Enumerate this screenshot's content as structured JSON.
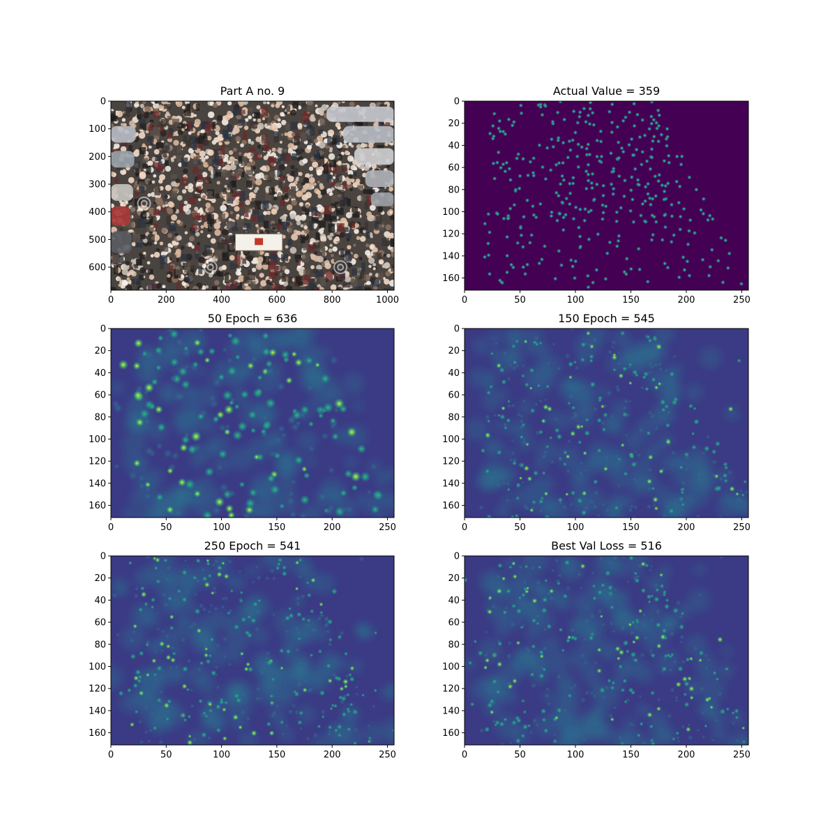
{
  "figure": {
    "layout": "3x2 grid of image panels"
  },
  "chart_data": [
    {
      "type": "heatmap",
      "kind": "photo",
      "title": "Part A no. 9",
      "image_description": "Crowd of people in a street procession, parked cars on left and right, canopy in the center, watermark swirls",
      "xlim": [
        0,
        1024
      ],
      "ylim": [
        683,
        0
      ],
      "xticks": [
        "0",
        "200",
        "400",
        "600",
        "800",
        "1000"
      ],
      "xtick_values": [
        0,
        200,
        400,
        600,
        800,
        1000
      ],
      "yticks": [
        "0",
        "100",
        "200",
        "300",
        "400",
        "500",
        "600"
      ],
      "ytick_values": [
        0,
        100,
        200,
        300,
        400,
        500,
        600
      ]
    },
    {
      "type": "heatmap",
      "kind": "ground_truth",
      "title": "Actual Value = 359",
      "count": 359,
      "colormap": "viridis",
      "xlim": [
        0,
        256
      ],
      "ylim": [
        171,
        0
      ],
      "xticks": [
        "0",
        "50",
        "100",
        "150",
        "200",
        "250"
      ],
      "xtick_values": [
        0,
        50,
        100,
        150,
        200,
        250
      ],
      "yticks": [
        "0",
        "20",
        "40",
        "60",
        "80",
        "100",
        "120",
        "140",
        "160"
      ],
      "ytick_values": [
        0,
        20,
        40,
        60,
        80,
        100,
        120,
        140,
        160
      ]
    },
    {
      "type": "heatmap",
      "kind": "prediction",
      "title": "50 Epoch = 636",
      "count": 636,
      "colormap": "viridis",
      "xlim": [
        0,
        256
      ],
      "ylim": [
        171,
        0
      ],
      "xticks": [
        "0",
        "50",
        "100",
        "150",
        "200",
        "250"
      ],
      "xtick_values": [
        0,
        50,
        100,
        150,
        200,
        250
      ],
      "yticks": [
        "0",
        "20",
        "40",
        "60",
        "80",
        "100",
        "120",
        "140",
        "160"
      ],
      "ytick_values": [
        0,
        20,
        40,
        60,
        80,
        100,
        120,
        140,
        160
      ]
    },
    {
      "type": "heatmap",
      "kind": "prediction",
      "title": "150 Epoch = 545",
      "count": 545,
      "colormap": "viridis",
      "xlim": [
        0,
        256
      ],
      "ylim": [
        171,
        0
      ],
      "xticks": [
        "0",
        "50",
        "100",
        "150",
        "200",
        "250"
      ],
      "xtick_values": [
        0,
        50,
        100,
        150,
        200,
        250
      ],
      "yticks": [
        "0",
        "20",
        "40",
        "60",
        "80",
        "100",
        "120",
        "140",
        "160"
      ],
      "ytick_values": [
        0,
        20,
        40,
        60,
        80,
        100,
        120,
        140,
        160
      ]
    },
    {
      "type": "heatmap",
      "kind": "prediction",
      "title": "250 Epoch = 541",
      "count": 541,
      "colormap": "viridis",
      "xlim": [
        0,
        256
      ],
      "ylim": [
        171,
        0
      ],
      "xticks": [
        "0",
        "50",
        "100",
        "150",
        "200",
        "250"
      ],
      "xtick_values": [
        0,
        50,
        100,
        150,
        200,
        250
      ],
      "yticks": [
        "0",
        "20",
        "40",
        "60",
        "80",
        "100",
        "120",
        "140",
        "160"
      ],
      "ytick_values": [
        0,
        20,
        40,
        60,
        80,
        100,
        120,
        140,
        160
      ]
    },
    {
      "type": "heatmap",
      "kind": "prediction",
      "title": "Best Val Loss = 516",
      "count": 516,
      "colormap": "viridis",
      "xlim": [
        0,
        256
      ],
      "ylim": [
        171,
        0
      ],
      "xticks": [
        "0",
        "50",
        "100",
        "150",
        "200",
        "250"
      ],
      "xtick_values": [
        0,
        50,
        100,
        150,
        200,
        250
      ],
      "yticks": [
        "0",
        "20",
        "40",
        "60",
        "80",
        "100",
        "120",
        "140",
        "160"
      ],
      "ytick_values": [
        0,
        20,
        40,
        60,
        80,
        100,
        120,
        140,
        160
      ]
    }
  ]
}
